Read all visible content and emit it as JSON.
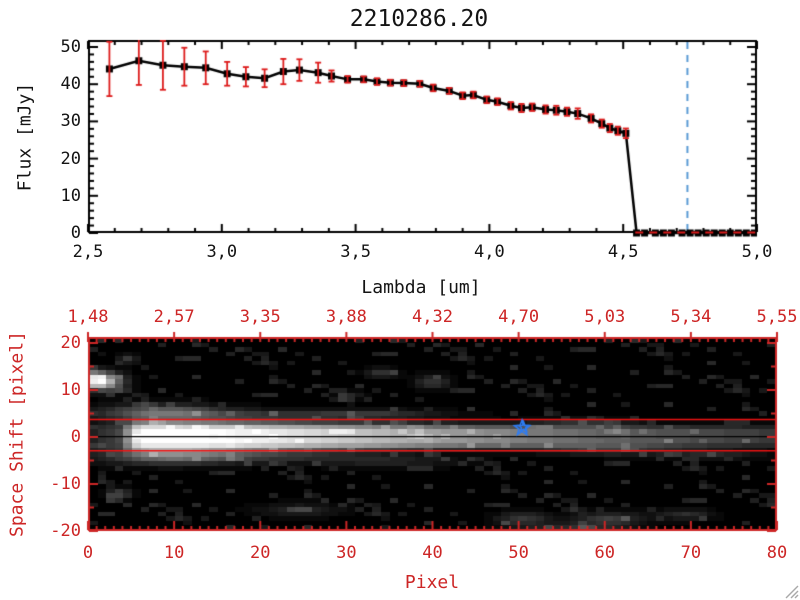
{
  "title": "2210286.20",
  "top_panel": {
    "xlabel": "Lambda [um]",
    "ylabel": "Flux [mJy]",
    "x_tick_values": [
      2.5,
      3.0,
      3.5,
      4.0,
      4.5,
      5.0
    ],
    "x_tick_labels": [
      "2,5",
      "3,0",
      "3,5",
      "4,0",
      "4,5",
      "5,0"
    ],
    "y_tick_values": [
      0,
      10,
      20,
      30,
      40,
      50
    ],
    "y_tick_labels": [
      "0",
      "10",
      "20",
      "30",
      "40",
      "50"
    ],
    "x_range": [
      2.5,
      5.0
    ],
    "y_range": [
      0,
      51.8
    ]
  },
  "bottom_panel": {
    "xlabel": "Pixel",
    "ylabel": "Space Shift [pixel]",
    "x_tick_values": [
      0,
      10,
      20,
      30,
      40,
      50,
      60,
      70,
      80
    ],
    "x_tick_labels": [
      "0",
      "10",
      "20",
      "30",
      "40",
      "50",
      "60",
      "70",
      "80"
    ],
    "y_tick_values": [
      20,
      10,
      0,
      -10,
      -20
    ],
    "y_tick_labels": [
      "20",
      "10",
      "0",
      "-10",
      "-20"
    ],
    "top_axis_tick_values": [
      0,
      10,
      20,
      30,
      40,
      50,
      60,
      70,
      80
    ],
    "top_axis_labels": [
      "1,48",
      "2,57",
      "3,35",
      "3,88",
      "4,32",
      "4,70",
      "5,03",
      "5,34",
      "5,55"
    ],
    "x_range": [
      0,
      80
    ],
    "y_range": [
      -20,
      20
    ]
  },
  "colors": {
    "top_axis": "#000000",
    "marker": "#000000",
    "error_bar": "#dd1c1c",
    "zero_dashed": "#dd1c1c",
    "cutoff_line": "#5b9bd5",
    "bottom_axis": "#cd2626",
    "aperture_line": "#ee1212",
    "trace_line": "#000000",
    "star_marker": "#2e7cf2",
    "background": "#ffffff",
    "image_background": "#000000"
  },
  "chart_data": [
    {
      "type": "line",
      "title": "2210286.20",
      "xlabel": "Lambda [um]",
      "ylabel": "Flux [mJy]",
      "xlim": [
        2.5,
        5.0
      ],
      "ylim": [
        0,
        51.8
      ],
      "marker": "filled-square",
      "x": [
        2.58,
        2.69,
        2.78,
        2.86,
        2.94,
        3.02,
        3.09,
        3.16,
        3.23,
        3.29,
        3.36,
        3.41,
        3.47,
        3.53,
        3.58,
        3.63,
        3.68,
        3.74,
        3.79,
        3.85,
        3.9,
        3.94,
        3.99,
        4.03,
        4.08,
        4.12,
        4.16,
        4.21,
        4.25,
        4.29,
        4.33,
        4.38,
        4.42,
        4.45,
        4.48,
        4.51
      ],
      "y": [
        44.1,
        46.3,
        45.1,
        44.7,
        44.4,
        42.8,
        42.0,
        41.6,
        43.4,
        43.8,
        43.1,
        42.2,
        41.3,
        41.3,
        40.7,
        40.4,
        40.3,
        40.1,
        39.0,
        38.2,
        36.9,
        37.1,
        35.8,
        35.3,
        34.2,
        33.6,
        33.8,
        33.2,
        33.0,
        32.6,
        32.1,
        30.8,
        29.4,
        28.2,
        27.5,
        26.8
      ],
      "yerr": [
        7.3,
        6.5,
        6.6,
        5.1,
        4.4,
        3.2,
        2.6,
        2.4,
        3.4,
        2.9,
        2.7,
        1.5,
        0.9,
        0.8,
        0.9,
        0.8,
        0.8,
        0.8,
        0.9,
        0.8,
        0.9,
        0.9,
        0.9,
        0.9,
        1.0,
        1.1,
        1.0,
        1.1,
        1.2,
        1.1,
        1.4,
        1.1,
        1.1,
        1.1,
        1.1,
        1.3
      ],
      "zero_tail_x": [
        4.55,
        4.58,
        4.62,
        4.65,
        4.68,
        4.72,
        4.75,
        4.78,
        4.81,
        4.84,
        4.87,
        4.9,
        4.93,
        4.96,
        4.99
      ],
      "zero_dashed_from": 4.545,
      "cutoff_line_x": 4.74
    },
    {
      "type": "heatmap",
      "xlabel": "Pixel",
      "ylabel": "Space Shift [pixel]",
      "xlim": [
        0,
        80
      ],
      "ylim": [
        -20,
        21
      ],
      "top_axis_wavelengths": [
        1.48,
        2.57,
        3.35,
        3.88,
        4.32,
        4.7,
        5.03,
        5.34,
        5.55
      ],
      "aperture_lines_shift": [
        3.7,
        -2.9
      ],
      "trace_center_shift": 0.1,
      "star_marker": {
        "pixel": 50.4,
        "shift": 1.9
      },
      "render": {
        "cols": 80,
        "rows": 42,
        "center_row": 21.1,
        "core_profile": [
          [
            0,
            35
          ],
          [
            3,
            70
          ],
          [
            4,
            140
          ],
          [
            5,
            230
          ],
          [
            6,
            255
          ],
          [
            12,
            255
          ],
          [
            20,
            237
          ],
          [
            30,
            198
          ],
          [
            40,
            158
          ],
          [
            50,
            126
          ],
          [
            60,
            96
          ],
          [
            70,
            74
          ],
          [
            79,
            56
          ]
        ],
        "sigma_profile": [
          [
            0,
            2.3
          ],
          [
            10,
            2.3
          ],
          [
            25,
            1.8
          ],
          [
            45,
            1.5
          ],
          [
            79,
            1.3
          ]
        ],
        "blobs": [
          [
            1.5,
            12,
            2.2,
            2.0,
            150
          ],
          [
            0.5,
            12.5,
            1.2,
            1.5,
            190
          ],
          [
            4,
            17,
            1.2,
            1.0,
            55
          ],
          [
            8,
            5.5,
            7,
            1.6,
            95
          ],
          [
            20,
            4.8,
            14,
            1.2,
            42
          ],
          [
            33,
            5,
            8,
            1.0,
            38
          ],
          [
            9,
            -4.5,
            8,
            1.7,
            85
          ],
          [
            22,
            -4.5,
            12,
            1.3,
            40
          ],
          [
            35,
            -5.5,
            8,
            1.2,
            30
          ],
          [
            3,
            -12.5,
            1.5,
            1.2,
            70
          ],
          [
            33.5,
            14,
            1.8,
            1.2,
            48
          ],
          [
            39.5,
            12,
            2.0,
            1.5,
            55
          ],
          [
            30,
            9,
            1.5,
            1.0,
            40
          ],
          [
            24,
            -16,
            5,
            1.5,
            35
          ],
          [
            50,
            -18,
            3,
            1.5,
            55
          ],
          [
            60,
            -18,
            4,
            1.5,
            60
          ],
          [
            69,
            -17,
            3,
            1.2,
            45
          ],
          [
            56,
            -20,
            6,
            1,
            40
          ],
          [
            60,
            -3,
            8,
            1.2,
            45
          ],
          [
            72,
            -4,
            6,
            1,
            35
          ],
          [
            57,
            3,
            5,
            1,
            38
          ]
        ],
        "noise_fraction": 0.22,
        "noise_max": 44,
        "seed": 9
      }
    }
  ],
  "window": {
    "has_resize_grip": true
  }
}
